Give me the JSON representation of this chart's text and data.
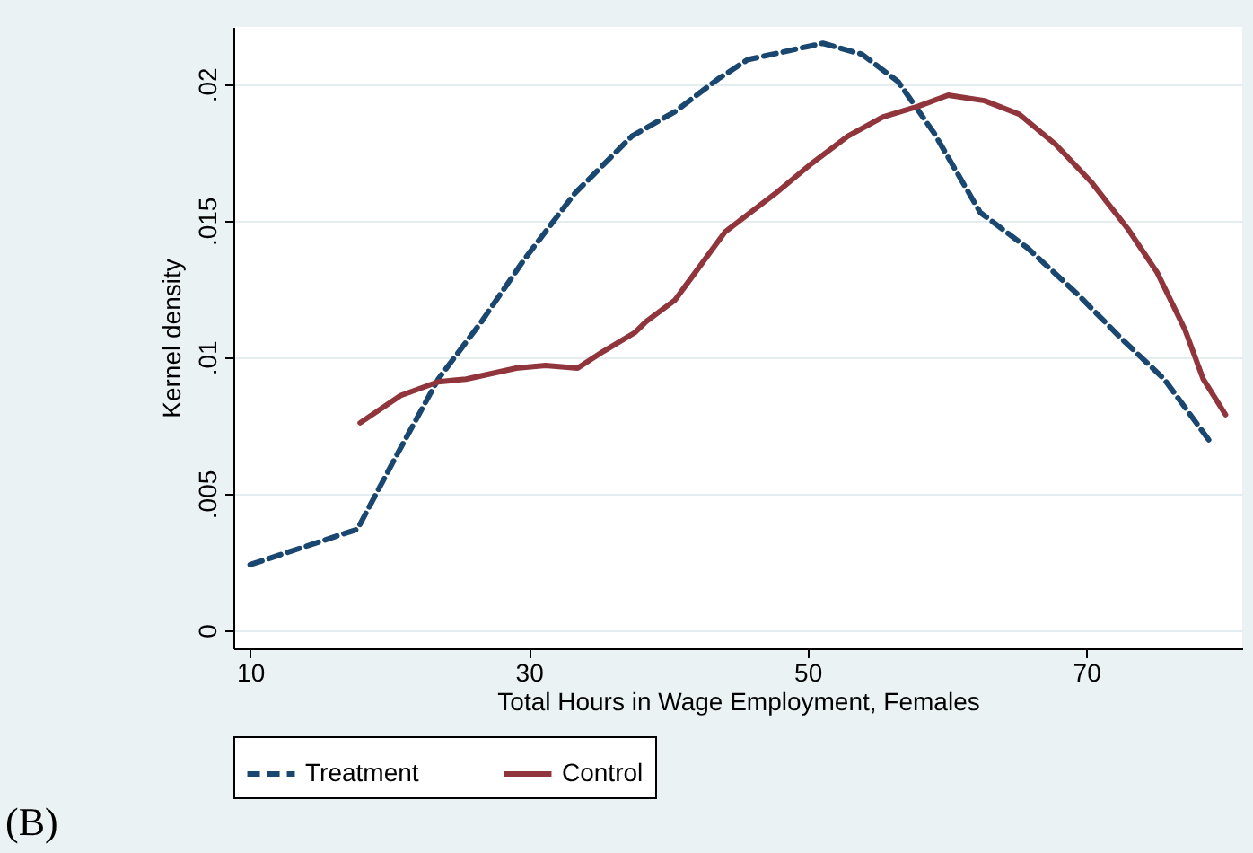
{
  "chart_data": {
    "type": "line",
    "xlabel": "Total Hours in Wage Employment, Females",
    "ylabel": "Kernel density",
    "xlim": [
      8.8,
      81.2
    ],
    "ylim": [
      -0.00066,
      0.0221
    ],
    "xticks": [
      10,
      30,
      50,
      70
    ],
    "yticks": [
      {
        "value": 0,
        "label": "0"
      },
      {
        "value": 0.005,
        "label": ".005"
      },
      {
        "value": 0.01,
        "label": ".01"
      },
      {
        "value": 0.015,
        "label": ".015"
      },
      {
        "value": 0.02,
        "label": ".02"
      }
    ],
    "grid": "y",
    "legend": "bottom",
    "annotations": [
      "(B)"
    ],
    "series": [
      {
        "name": "Treatment",
        "color": "#1a476f",
        "line_style": "dashed",
        "x": [
          10,
          17.7,
          20.4,
          23.5,
          26.6,
          29.7,
          33.3,
          37.4,
          40.5,
          43.6,
          45.7,
          47.5,
          51.1,
          53.9,
          56.5,
          59.1,
          62.4,
          65.8,
          69.4,
          72.5,
          75.6,
          78.9
        ],
        "values": [
          0.0024,
          0.0037,
          0.0063,
          0.0092,
          0.0113,
          0.0136,
          0.016,
          0.0181,
          0.019,
          0.0202,
          0.0209,
          0.0211,
          0.0215,
          0.0211,
          0.0201,
          0.0182,
          0.0153,
          0.014,
          0.0123,
          0.0107,
          0.0092,
          0.0069
        ]
      },
      {
        "name": "Control",
        "color": "#90353b",
        "line_style": "solid",
        "x": [
          17.9,
          20.8,
          23.5,
          25.5,
          29.1,
          31.2,
          33.5,
          35.3,
          37.6,
          38.4,
          40.5,
          44.1,
          47.7,
          50.3,
          52.9,
          55.4,
          58,
          60.1,
          62.7,
          65.2,
          67.8,
          70.4,
          73,
          75.1,
          77.1,
          78.4,
          80
        ],
        "values": [
          0.0076,
          0.0086,
          0.0091,
          0.0092,
          0.0096,
          0.0097,
          0.0096,
          0.0102,
          0.0109,
          0.0113,
          0.0121,
          0.0146,
          0.016,
          0.0171,
          0.0181,
          0.0188,
          0.0192,
          0.0196,
          0.0194,
          0.0189,
          0.0178,
          0.0164,
          0.0147,
          0.0131,
          0.011,
          0.0092,
          0.0079
        ]
      }
    ]
  }
}
